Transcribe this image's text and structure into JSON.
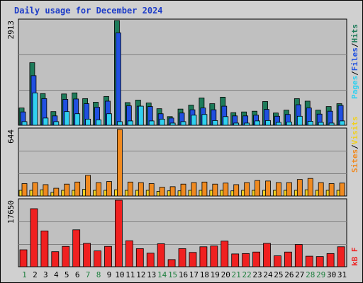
{
  "title": "Daily usage for December 2024",
  "colors": {
    "hits": "#1e7b5a",
    "files": "#2050e0",
    "pages": "#30d0f0",
    "visits": "#f0d020",
    "sites": "#f08a20",
    "kbf": "#f02020",
    "plot_bg": "#c0c0c0",
    "weekend_day": "#208040",
    "weekday_day": "#1e3dc8"
  },
  "labels": {
    "hits_files_pages_max": "2913",
    "sites_visits_max": "644",
    "kbf_max": "17650",
    "legend_pages": "Pages",
    "legend_files": "Files",
    "legend_hits": "Hits",
    "legend_sites": "Sites",
    "legend_visits": "Visits",
    "legend_kbf": "kB F",
    "sep": "/"
  },
  "chart_data": {
    "type": "bar",
    "title": "Daily usage for December 2024",
    "categories": [
      "1",
      "2",
      "3",
      "4",
      "5",
      "6",
      "7",
      "8",
      "9",
      "10",
      "11",
      "12",
      "13",
      "14",
      "15",
      "16",
      "17",
      "18",
      "19",
      "20",
      "21",
      "22",
      "23",
      "24",
      "25",
      "26",
      "27",
      "28",
      "29",
      "30",
      "31"
    ],
    "weekend_days": [
      "1",
      "7",
      "8",
      "14",
      "15",
      "21",
      "22",
      "28",
      "29"
    ],
    "panels": [
      {
        "name": "hits-files-pages",
        "max_label": "2913",
        "ylim": [
          0,
          2913
        ],
        "series": [
          {
            "name": "Hits",
            "values": [
              480,
              1740,
              880,
              380,
              870,
              900,
              740,
              640,
              800,
              2913,
              630,
              700,
              620,
              460,
              240,
              450,
              560,
              760,
              600,
              780,
              350,
              370,
              390,
              660,
              340,
              420,
              740,
              670,
              420,
              520,
              600
            ]
          },
          {
            "name": "Files",
            "values": [
              370,
              1380,
              740,
              260,
              720,
              730,
              600,
              500,
              670,
              2570,
              540,
              530,
              520,
              320,
              200,
              340,
              430,
              480,
              430,
              530,
              260,
              260,
              280,
              440,
              250,
              300,
              570,
              480,
              310,
              390,
              550
            ]
          },
          {
            "name": "Pages",
            "values": [
              100,
              900,
              200,
              100,
              380,
              320,
              170,
              150,
              320,
              100,
              120,
              530,
              120,
              170,
              60,
              100,
              280,
              300,
              130,
              240,
              60,
              60,
              120,
              130,
              80,
              90,
              250,
              110,
              80,
              60,
              120
            ]
          }
        ]
      },
      {
        "name": "sites-visits",
        "max_label": "644",
        "ylim": [
          0,
          644
        ],
        "series": [
          {
            "name": "Sites",
            "values": [
              120,
              130,
              110,
              75,
              115,
              135,
              200,
              130,
              140,
              644,
              135,
              130,
              120,
              85,
              90,
              115,
              130,
              135,
              115,
              125,
              110,
              130,
              150,
              145,
              130,
              130,
              160,
              170,
              130,
              120,
              125
            ]
          },
          {
            "name": "Visits",
            "values": [
              55,
              55,
              60,
              35,
              55,
              55,
              65,
              55,
              55,
              60,
              55,
              55,
              55,
              45,
              50,
              50,
              55,
              55,
              55,
              55,
              50,
              55,
              55,
              55,
              55,
              55,
              55,
              60,
              55,
              55,
              55
            ]
          }
        ]
      },
      {
        "name": "kbf",
        "max_label": "17650",
        "ylim": [
          0,
          17650
        ],
        "series": [
          {
            "name": "kB F",
            "values": [
              4500,
              15400,
              9500,
              4000,
              5400,
              9800,
              6200,
              4200,
              5400,
              17650,
              6900,
              4800,
              3600,
              6100,
              1900,
              4800,
              3800,
              5300,
              5500,
              6800,
              3400,
              3500,
              3900,
              6200,
              2900,
              3900,
              5900,
              2800,
              2700,
              3500,
              5300
            ]
          }
        ]
      }
    ]
  }
}
